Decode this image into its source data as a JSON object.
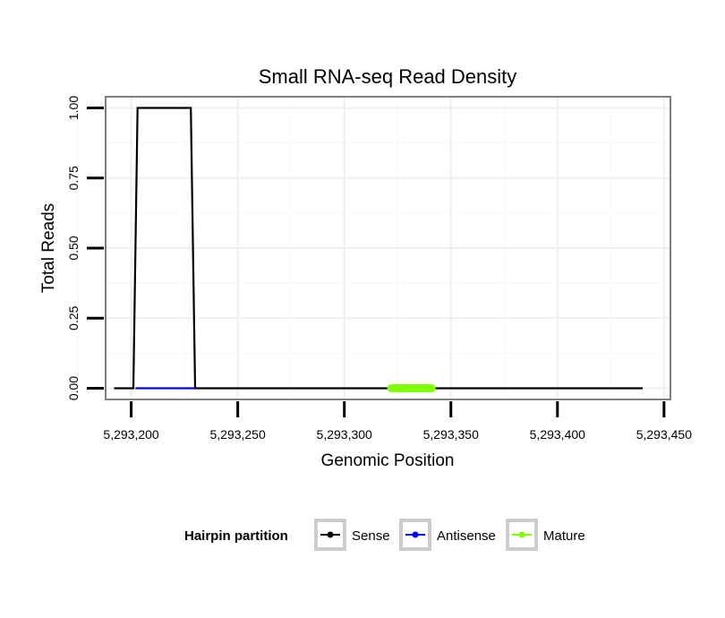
{
  "chart_data": {
    "type": "line",
    "title": "Small RNA-seq Read Density",
    "xlabel": "Genomic Position",
    "ylabel": "Total Reads",
    "xlim": [
      5293188,
      5293453
    ],
    "ylim": [
      -0.04,
      1.04
    ],
    "x_ticks": [
      5293200,
      5293250,
      5293300,
      5293350,
      5293400,
      5293450
    ],
    "x_tick_labels": [
      "5,293,200",
      "5,293,250",
      "5,293,300",
      "5,293,350",
      "5,293,400",
      "5,293,450"
    ],
    "y_ticks": [
      0,
      0.25,
      0.5,
      0.75,
      1
    ],
    "y_tick_labels": [
      "0.00",
      "0.25",
      "0.50",
      "0.75",
      "1.00"
    ],
    "grid": true,
    "series": [
      {
        "name": "Sense",
        "color": "#000000",
        "x": [
          5293192,
          5293201,
          5293203,
          5293228,
          5293230,
          5293440
        ],
        "y": [
          0,
          0,
          1,
          1,
          0,
          0
        ]
      },
      {
        "name": "Antisense",
        "color": "#0000ff",
        "x": [
          5293202,
          5293230
        ],
        "y": [
          0,
          0
        ]
      },
      {
        "name": "Mature",
        "color": "#7fff00",
        "x": [
          5293322,
          5293341
        ],
        "y": [
          0,
          0
        ]
      }
    ],
    "legend": {
      "title": "Hairpin partition",
      "position": "bottom",
      "entries": [
        "Sense",
        "Antisense",
        "Mature"
      ]
    }
  }
}
